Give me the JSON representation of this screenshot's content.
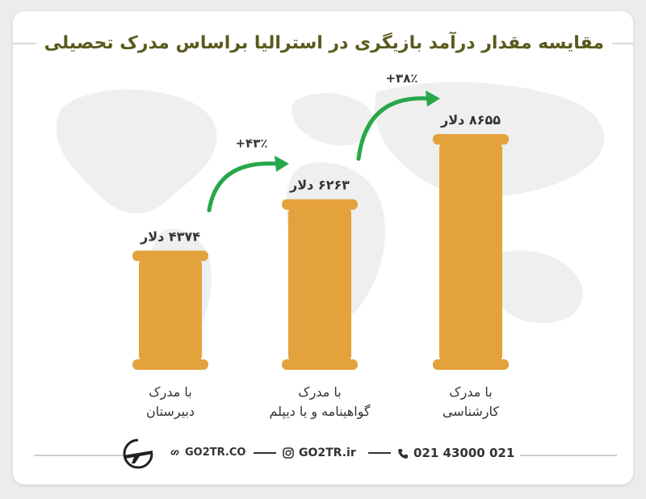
{
  "title": "مقایسه مقدار درآمد بازیگری در استرالیا براساس مدرک تحصیلی",
  "colors": {
    "bar": "#e3a23c",
    "arrow": "#27a74a",
    "title": "#5a5a1e",
    "text": "#333333",
    "map": "#efefef"
  },
  "chart_data": {
    "type": "bar",
    "title": "مقایسه مقدار درآمد بازیگری در استرالیا براساس مدرک تحصیلی",
    "categories": [
      "با مدرک دبیرستان",
      "با مدرک گواهینامه و یا دیپلم",
      "با مدرک کارشناسی"
    ],
    "category_lines": [
      [
        "با مدرک",
        "دبیرستان"
      ],
      [
        "با مدرک",
        "گواهینامه و یا دیپلم"
      ],
      [
        "با مدرک",
        "کارشناسی"
      ]
    ],
    "values": [
      4374,
      6263,
      8655
    ],
    "value_labels": [
      "۴۳۷۴ دلار",
      "۶۲۶۳ دلار",
      "۸۶۵۵ دلار"
    ],
    "annotations": [
      "+۴۳٪",
      "+۳۸٪"
    ],
    "ylim": [
      0,
      9000
    ],
    "grid": false,
    "legend": "none",
    "xlabel": "",
    "ylabel": ""
  },
  "footer": {
    "website": "GO2TR.CO",
    "instagram": "GO2TR.ir",
    "phone": "021 43000 021",
    "icons": [
      "logo-plane-icon",
      "link-icon",
      "instagram-icon",
      "phone-icon"
    ]
  }
}
